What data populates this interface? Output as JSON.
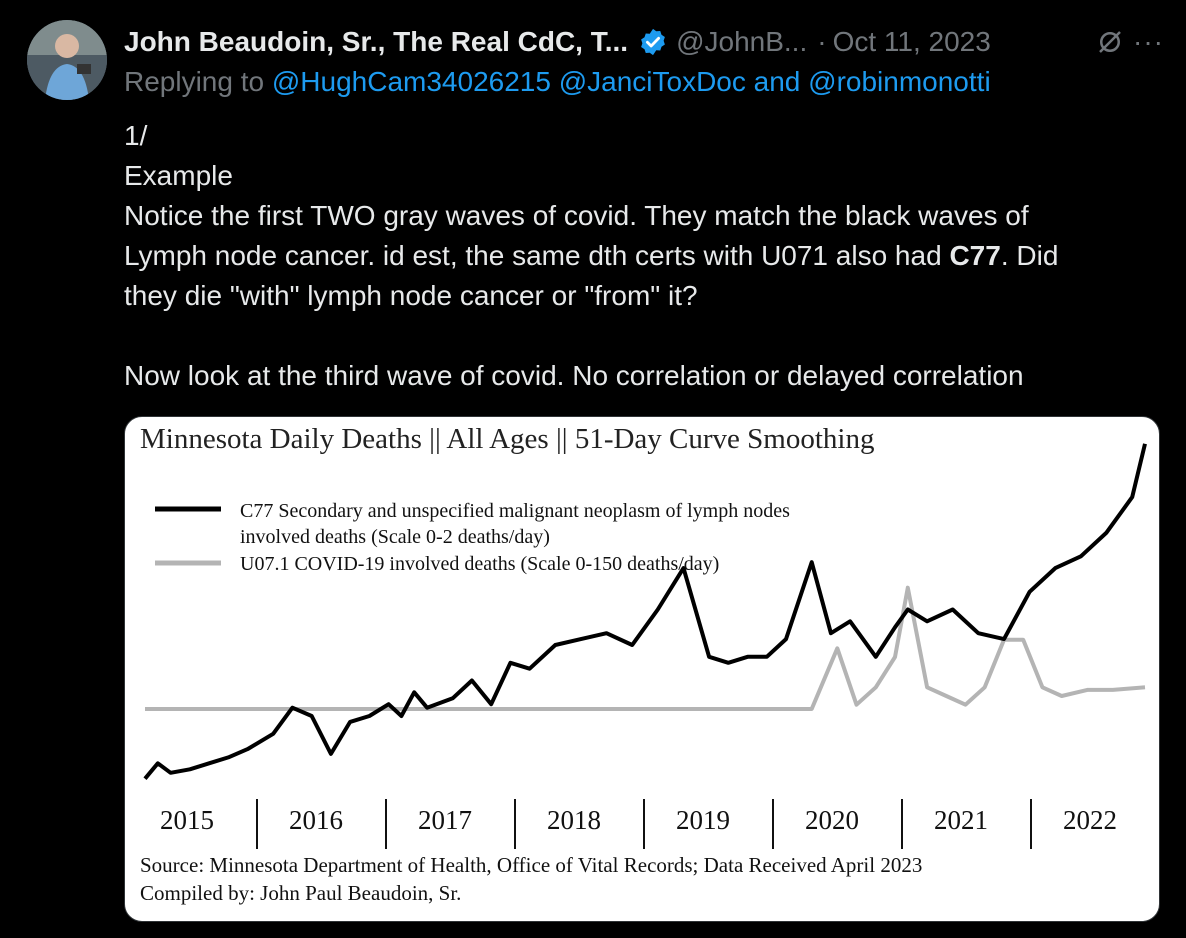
{
  "tweet": {
    "author_name": "John Beaudoin, Sr., The Real CdC, T...",
    "handle": "@JohnB...",
    "separator": "·",
    "date": "Oct 11, 2023",
    "more": "···",
    "replying_prefix": "Replying to",
    "replying_to": [
      "@HughCam34026215",
      "@JanciToxDoc"
    ],
    "replying_and": "and",
    "replying_last": "@robinmonotti",
    "lines": [
      "1/",
      "Example",
      "Notice the first TWO gray waves of covid. They match the black waves of",
      "Lymph node cancer. id est, the same dth certs with U071 also had ",
      "C77",
      ". Did",
      "they die \"with\" lymph node cancer or \"from\" it?",
      "",
      "Now look at the third wave of covid. No correlation or delayed correlation"
    ],
    "icons": {
      "verified": "verified-badge-icon",
      "grok": "grok-icon",
      "more": "more-icon"
    },
    "colors": {
      "link": "#1d9bf0",
      "muted": "#71767b",
      "text": "#e7e9ea"
    }
  },
  "chart_data": {
    "type": "line",
    "title": "Minnesota Daily Deaths || All Ages || 51-Day Curve Smoothing",
    "x_categories": [
      "2015",
      "2016",
      "2017",
      "2018",
      "2019",
      "2020",
      "2021",
      "2022"
    ],
    "series": [
      {
        "name": "C77 Secondary and unspecified malignant neoplasm of lymph nodes involved deaths (Scale 0-2 deaths/day)",
        "color": "#000000",
        "x": [
          2015.0,
          2015.1,
          2015.2,
          2015.35,
          2015.5,
          2015.65,
          2015.8,
          2016.0,
          2016.15,
          2016.3,
          2016.45,
          2016.6,
          2016.75,
          2016.9,
          2017.0,
          2017.1,
          2017.2,
          2017.4,
          2017.55,
          2017.7,
          2017.85,
          2018.0,
          2018.2,
          2018.4,
          2018.6,
          2018.8,
          2019.0,
          2019.2,
          2019.4,
          2019.55,
          2019.7,
          2019.85,
          2020.0,
          2020.2,
          2020.35,
          2020.5,
          2020.7,
          2020.85,
          2020.95,
          2021.1,
          2021.3,
          2021.5,
          2021.7,
          2021.9,
          2022.1,
          2022.3,
          2022.5,
          2022.7,
          2022.8
        ],
        "y": [
          0.07,
          0.2,
          0.12,
          0.15,
          0.2,
          0.25,
          0.32,
          0.45,
          0.67,
          0.6,
          0.28,
          0.55,
          0.6,
          0.7,
          0.6,
          0.8,
          0.67,
          0.75,
          0.9,
          0.7,
          1.05,
          1.0,
          1.2,
          1.25,
          1.3,
          1.2,
          1.5,
          1.85,
          1.1,
          1.05,
          1.1,
          1.1,
          1.25,
          1.9,
          1.3,
          1.4,
          1.1,
          1.35,
          1.5,
          1.4,
          1.5,
          1.3,
          1.25,
          1.65,
          1.85,
          1.95,
          2.15,
          2.45,
          2.9
        ]
      },
      {
        "name": "U07.1 COVID-19 involved deaths (Scale 0-150 deaths/day)",
        "color": "#b4b4b4",
        "x": [
          2015.0,
          2016.0,
          2017.0,
          2018.0,
          2019.0,
          2020.0,
          2020.2,
          2020.4,
          2020.55,
          2020.7,
          2020.85,
          2020.95,
          2021.1,
          2021.25,
          2021.4,
          2021.55,
          2021.7,
          2021.85,
          2022.0,
          2022.15,
          2022.35,
          2022.55,
          2022.8
        ],
        "y": [
          0,
          0,
          0,
          0,
          0,
          0,
          0,
          70,
          5,
          25,
          60,
          140,
          25,
          15,
          5,
          25,
          80,
          80,
          25,
          15,
          22,
          22,
          25
        ]
      }
    ],
    "y_scale_notes": [
      "0-2 deaths/day",
      "0-150 deaths/day"
    ],
    "source": "Source:  Minnesota Department of Health, Office of Vital Records; Data Received April 2023",
    "compiled_by": "Compiled by:  John Paul Beaudoin, Sr."
  }
}
